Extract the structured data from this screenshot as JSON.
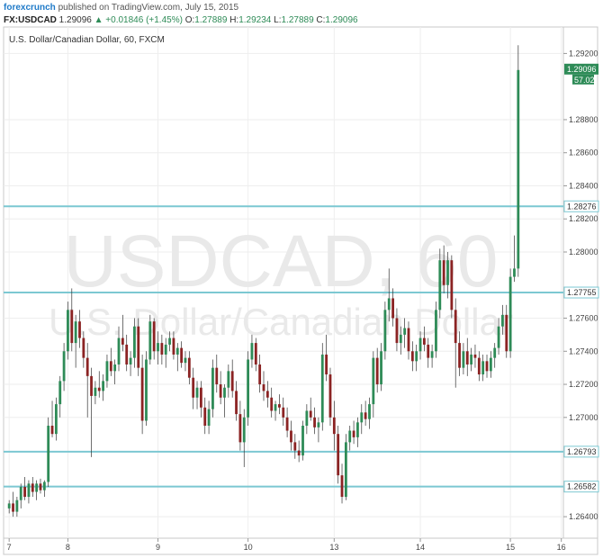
{
  "header": {
    "brand": "forexcrunch",
    "published": "published on TradingView.com, July 15, 2015",
    "symbol": "FX:USDCAD",
    "last": "1.29096",
    "arrow": "▲",
    "change": "+0.01846 (+1.45%)",
    "o_label": "O:",
    "o_value": "1.27889",
    "h_label": "H:",
    "h_value": "1.29234",
    "l_label": "L:",
    "l_value": "1.27889",
    "c_label": "C:",
    "c_value": "1.29096"
  },
  "chart_data": {
    "type": "candlestick",
    "title": "U.S. Dollar/Canadian Dollar, 60, FXCM",
    "watermark_main": "USDCAD, 60",
    "watermark_sub": "U.S. Dollar/Canadian Dollar",
    "y_range": [
      1.2627,
      1.2936
    ],
    "y_ticks": [
      "1.29200",
      "1.28800",
      "1.28600",
      "1.28400",
      "1.28200",
      "1.28000",
      "1.27600",
      "1.27400",
      "1.27200",
      "1.27000",
      "1.26400"
    ],
    "x_ticks": [
      "7",
      "8",
      "9",
      "10",
      "13",
      "14",
      "15",
      "16"
    ],
    "last_price_label": "1.29096",
    "last_volume_label": "57.02",
    "horizontal_levels": [
      1.28276,
      1.27755,
      1.26793,
      1.26582
    ],
    "level_labels": [
      "1.28276",
      "1.27755",
      "1.26793",
      "1.26582"
    ],
    "colors": {
      "up": "#2e8b57",
      "down": "#8b2323",
      "level": "#7cc8d2",
      "label_bg": "#2e8b57"
    },
    "candles": [
      [
        1.2645,
        1.265,
        1.2642,
        1.2648
      ],
      [
        1.2648,
        1.2655,
        1.264,
        1.2643
      ],
      [
        1.2643,
        1.2652,
        1.264,
        1.265
      ],
      [
        1.265,
        1.266,
        1.2645,
        1.2658
      ],
      [
        1.2658,
        1.2664,
        1.265,
        1.2652
      ],
      [
        1.2652,
        1.2662,
        1.2648,
        1.266
      ],
      [
        1.266,
        1.2664,
        1.2652,
        1.2655
      ],
      [
        1.2655,
        1.2662,
        1.265,
        1.266
      ],
      [
        1.266,
        1.2663,
        1.2654,
        1.2656
      ],
      [
        1.2656,
        1.2662,
        1.2652,
        1.2661
      ],
      [
        1.2661,
        1.27,
        1.2658,
        1.2695
      ],
      [
        1.2695,
        1.271,
        1.2688,
        1.269
      ],
      [
        1.269,
        1.2712,
        1.2686,
        1.2708
      ],
      [
        1.2708,
        1.2725,
        1.27,
        1.2722
      ],
      [
        1.2722,
        1.2745,
        1.2716,
        1.274
      ],
      [
        1.274,
        1.277,
        1.2735,
        1.2765
      ],
      [
        1.2765,
        1.2778,
        1.274,
        1.2745
      ],
      [
        1.2745,
        1.2762,
        1.273,
        1.2758
      ],
      [
        1.2758,
        1.2765,
        1.2742,
        1.2748
      ],
      [
        1.2748,
        1.2752,
        1.273,
        1.2736
      ],
      [
        1.2736,
        1.2745,
        1.27,
        1.2725
      ],
      [
        1.2725,
        1.273,
        1.2676,
        1.2713
      ],
      [
        1.2713,
        1.2722,
        1.2708,
        1.2718
      ],
      [
        1.2718,
        1.2728,
        1.2712,
        1.2716
      ],
      [
        1.2716,
        1.2726,
        1.271,
        1.2722
      ],
      [
        1.2722,
        1.2738,
        1.2718,
        1.2734
      ],
      [
        1.2734,
        1.2742,
        1.2725,
        1.2728
      ],
      [
        1.2728,
        1.2735,
        1.272,
        1.2732
      ],
      [
        1.2732,
        1.2755,
        1.2728,
        1.2748
      ],
      [
        1.2748,
        1.2762,
        1.274,
        1.2744
      ],
      [
        1.2744,
        1.275,
        1.2728,
        1.2732
      ],
      [
        1.2732,
        1.274,
        1.2725,
        1.2736
      ],
      [
        1.2736,
        1.276,
        1.273,
        1.2755
      ],
      [
        1.2755,
        1.276,
        1.2725,
        1.273
      ],
      [
        1.273,
        1.2738,
        1.269,
        1.2698
      ],
      [
        1.2698,
        1.274,
        1.2695,
        1.2735
      ],
      [
        1.2735,
        1.2762,
        1.2732,
        1.2758
      ],
      [
        1.2758,
        1.276,
        1.2735,
        1.274
      ],
      [
        1.274,
        1.2752,
        1.2732,
        1.2745
      ],
      [
        1.2745,
        1.275,
        1.2732,
        1.2738
      ],
      [
        1.2738,
        1.2748,
        1.273,
        1.2744
      ],
      [
        1.2744,
        1.2752,
        1.274,
        1.2748
      ],
      [
        1.2748,
        1.2752,
        1.2735,
        1.2738
      ],
      [
        1.2738,
        1.2745,
        1.2728,
        1.2742
      ],
      [
        1.2742,
        1.2746,
        1.273,
        1.2733
      ],
      [
        1.2733,
        1.274,
        1.2728,
        1.2736
      ],
      [
        1.2736,
        1.274,
        1.272,
        1.2724
      ],
      [
        1.2724,
        1.273,
        1.2705,
        1.2712
      ],
      [
        1.2712,
        1.2722,
        1.2705,
        1.2718
      ],
      [
        1.2718,
        1.2722,
        1.27,
        1.2706
      ],
      [
        1.2706,
        1.2712,
        1.269,
        1.2695
      ],
      [
        1.2695,
        1.271,
        1.269,
        1.2705
      ],
      [
        1.2705,
        1.2735,
        1.27,
        1.273
      ],
      [
        1.273,
        1.2738,
        1.2715,
        1.272
      ],
      [
        1.272,
        1.2728,
        1.2708,
        1.2712
      ],
      [
        1.2712,
        1.272,
        1.27,
        1.2718
      ],
      [
        1.2718,
        1.2732,
        1.2712,
        1.2728
      ],
      [
        1.2728,
        1.2735,
        1.2712,
        1.2716
      ],
      [
        1.2716,
        1.2722,
        1.2698,
        1.2702
      ],
      [
        1.2702,
        1.271,
        1.268,
        1.2685
      ],
      [
        1.2685,
        1.2705,
        1.267,
        1.27
      ],
      [
        1.27,
        1.274,
        1.2695,
        1.2735
      ],
      [
        1.2735,
        1.275,
        1.273,
        1.2745
      ],
      [
        1.2745,
        1.2748,
        1.2728,
        1.2732
      ],
      [
        1.2732,
        1.2738,
        1.2715,
        1.272
      ],
      [
        1.272,
        1.2728,
        1.271,
        1.2716
      ],
      [
        1.2716,
        1.2722,
        1.2706,
        1.2712
      ],
      [
        1.2712,
        1.2718,
        1.27,
        1.2704
      ],
      [
        1.2704,
        1.271,
        1.2698,
        1.2708
      ],
      [
        1.2708,
        1.2714,
        1.2702,
        1.2706
      ],
      [
        1.2706,
        1.2712,
        1.2695,
        1.27
      ],
      [
        1.27,
        1.2706,
        1.2688,
        1.2692
      ],
      [
        1.2692,
        1.2698,
        1.268,
        1.2685
      ],
      [
        1.2685,
        1.269,
        1.2675,
        1.268
      ],
      [
        1.268,
        1.2686,
        1.2673,
        1.2677
      ],
      [
        1.2677,
        1.2698,
        1.2674,
        1.2695
      ],
      [
        1.2695,
        1.2708,
        1.269,
        1.2704
      ],
      [
        1.2704,
        1.2712,
        1.2698,
        1.27
      ],
      [
        1.27,
        1.2706,
        1.269,
        1.2694
      ],
      [
        1.2694,
        1.27,
        1.2685,
        1.2697
      ],
      [
        1.2697,
        1.2745,
        1.2692,
        1.2738
      ],
      [
        1.2738,
        1.275,
        1.2722,
        1.2726
      ],
      [
        1.2726,
        1.273,
        1.2695,
        1.27
      ],
      [
        1.27,
        1.271,
        1.268,
        1.269
      ],
      [
        1.269,
        1.2695,
        1.266,
        1.2665
      ],
      [
        1.2665,
        1.2672,
        1.2648,
        1.2652
      ],
      [
        1.2652,
        1.269,
        1.265,
        1.2685
      ],
      [
        1.2685,
        1.2695,
        1.268,
        1.2692
      ],
      [
        1.2692,
        1.2698,
        1.2684,
        1.2688
      ],
      [
        1.2688,
        1.27,
        1.2682,
        1.2697
      ],
      [
        1.2697,
        1.2708,
        1.269,
        1.2703
      ],
      [
        1.2703,
        1.271,
        1.2695,
        1.2699
      ],
      [
        1.2699,
        1.2712,
        1.2693,
        1.2708
      ],
      [
        1.2708,
        1.274,
        1.27,
        1.2736
      ],
      [
        1.2736,
        1.2742,
        1.2715,
        1.272
      ],
      [
        1.272,
        1.2745,
        1.2716,
        1.274
      ],
      [
        1.274,
        1.277,
        1.2735,
        1.2765
      ],
      [
        1.2765,
        1.279,
        1.2758,
        1.2772
      ],
      [
        1.2772,
        1.2778,
        1.2755,
        1.276
      ],
      [
        1.276,
        1.2766,
        1.274,
        1.2745
      ],
      [
        1.2745,
        1.2755,
        1.2738,
        1.275
      ],
      [
        1.275,
        1.276,
        1.2742,
        1.2754
      ],
      [
        1.2754,
        1.2758,
        1.2735,
        1.274
      ],
      [
        1.274,
        1.2746,
        1.2728,
        1.2734
      ],
      [
        1.2734,
        1.2744,
        1.2728,
        1.274
      ],
      [
        1.274,
        1.2752,
        1.2735,
        1.2748
      ],
      [
        1.2748,
        1.2755,
        1.274,
        1.2744
      ],
      [
        1.2744,
        1.2748,
        1.273,
        1.2736
      ],
      [
        1.2736,
        1.2744,
        1.273,
        1.274
      ],
      [
        1.274,
        1.277,
        1.2736,
        1.2765
      ],
      [
        1.2765,
        1.2802,
        1.276,
        1.2795
      ],
      [
        1.2795,
        1.2804,
        1.2775,
        1.278
      ],
      [
        1.278,
        1.28,
        1.2772,
        1.2795
      ],
      [
        1.2795,
        1.2798,
        1.276,
        1.2765
      ],
      [
        1.2765,
        1.2772,
        1.2718,
        1.2745
      ],
      [
        1.2745,
        1.2752,
        1.2725,
        1.273
      ],
      [
        1.273,
        1.2745,
        1.2726,
        1.274
      ],
      [
        1.274,
        1.2748,
        1.2725,
        1.2732
      ],
      [
        1.2732,
        1.2742,
        1.2728,
        1.2738
      ],
      [
        1.2738,
        1.2744,
        1.273,
        1.2736
      ],
      [
        1.2736,
        1.274,
        1.2722,
        1.2726
      ],
      [
        1.2726,
        1.2738,
        1.2722,
        1.2734
      ],
      [
        1.2734,
        1.2738,
        1.2724,
        1.2728
      ],
      [
        1.2728,
        1.274,
        1.2724,
        1.2736
      ],
      [
        1.2736,
        1.2745,
        1.273,
        1.2742
      ],
      [
        1.2742,
        1.276,
        1.2738,
        1.2755
      ],
      [
        1.2755,
        1.2768,
        1.275,
        1.2762
      ],
      [
        1.2762,
        1.2768,
        1.2736,
        1.274
      ],
      [
        1.274,
        1.279,
        1.2736,
        1.2785
      ],
      [
        1.2785,
        1.281,
        1.2782,
        1.279
      ],
      [
        1.279,
        1.2925,
        1.2785,
        1.291
      ]
    ]
  }
}
